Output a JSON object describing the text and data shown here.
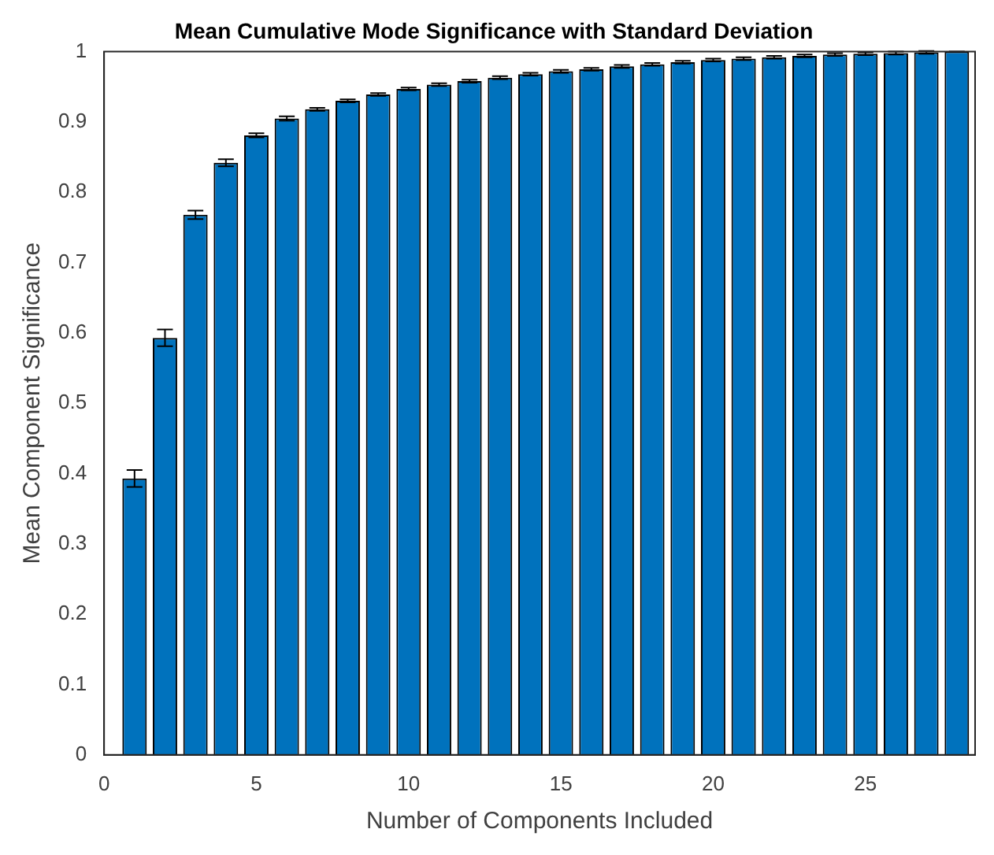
{
  "chart_data": {
    "type": "bar",
    "title": "Mean Cumulative Mode Significance with Standard Deviation",
    "xlabel": "Number of Components Included",
    "ylabel": "Mean Component Significance",
    "x": [
      1,
      2,
      3,
      4,
      5,
      6,
      7,
      8,
      9,
      10,
      11,
      12,
      13,
      14,
      15,
      16,
      17,
      18,
      19,
      20,
      21,
      22,
      23,
      24,
      25,
      26,
      27,
      28
    ],
    "values": [
      0.393,
      0.593,
      0.768,
      0.842,
      0.881,
      0.905,
      0.918,
      0.93,
      0.939,
      0.947,
      0.953,
      0.958,
      0.963,
      0.968,
      0.972,
      0.975,
      0.979,
      0.982,
      0.985,
      0.988,
      0.99,
      0.992,
      0.994,
      0.996,
      0.997,
      0.998,
      0.999,
      1.0
    ],
    "errors": [
      0.012,
      0.012,
      0.006,
      0.005,
      0.003,
      0.003,
      0.002,
      0.002,
      0.002,
      0.002,
      0.002,
      0.002,
      0.002,
      0.002,
      0.002,
      0.002,
      0.002,
      0.002,
      0.002,
      0.002,
      0.002,
      0.002,
      0.002,
      0.002,
      0.002,
      0.002,
      0.002,
      0
    ],
    "color": "#0072bd",
    "xlim": [
      0,
      28.6
    ],
    "xticks": [
      0,
      5,
      10,
      15,
      20,
      25
    ],
    "ylim": [
      0,
      1
    ],
    "yticks": [
      0,
      0.1,
      0.2,
      0.3,
      0.4,
      0.5,
      0.6,
      0.7,
      0.8,
      0.9,
      1
    ],
    "grid": false,
    "legend": false
  }
}
